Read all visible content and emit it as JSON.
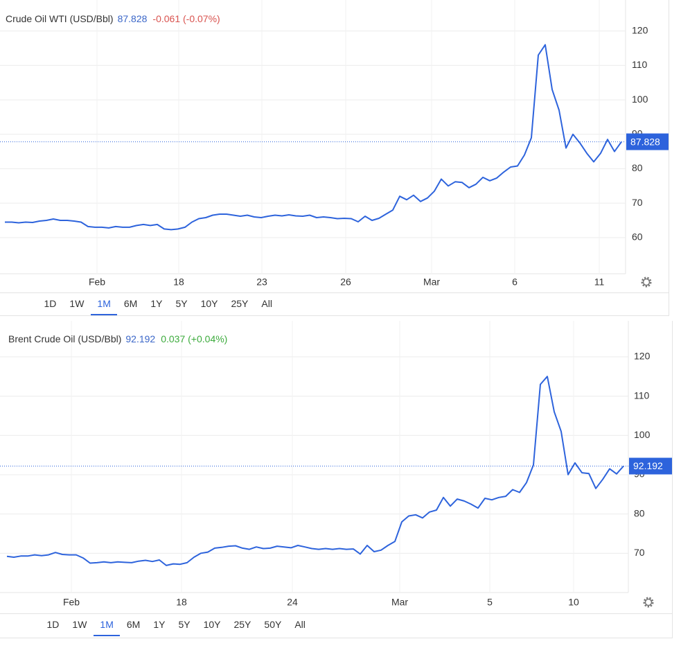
{
  "chart_data": [
    {
      "type": "line",
      "title": "Crude Oil WTI (USD/Bbl)",
      "price": 87.828,
      "price_color": "#3a66c8",
      "change": "-0.061 (-0.07%)",
      "change_color": "#d9534f",
      "color": "#2d63dc",
      "values": [
        64.5,
        64.5,
        64.3,
        64.5,
        64.4,
        64.8,
        65,
        65.4,
        65,
        65,
        64.8,
        64.5,
        63.2,
        63,
        63,
        62.8,
        63.2,
        63,
        63,
        63.5,
        63.8,
        63.5,
        63.8,
        62.5,
        62.3,
        62.5,
        63,
        64.5,
        65.5,
        65.8,
        66.5,
        66.8,
        66.8,
        66.5,
        66.2,
        66.5,
        66,
        65.8,
        66.2,
        66.5,
        66.3,
        66.6,
        66.3,
        66.2,
        66.5,
        65.8,
        66,
        65.8,
        65.5,
        65.6,
        65.5,
        64.6,
        66.2,
        65,
        65.6,
        66.8,
        68,
        72,
        71,
        72.3,
        70.5,
        71.5,
        73.5,
        77,
        75,
        76.2,
        76,
        74.5,
        75.5,
        77.5,
        76.5,
        77.3,
        79,
        80.5,
        80.8,
        84,
        89,
        113,
        116,
        103,
        97,
        86,
        90,
        87.5,
        84.5,
        82,
        84.5,
        88.5,
        85,
        87.8
      ],
      "xlim": [
        0,
        89.6
      ],
      "xticks": [
        {
          "value": 13.3,
          "label": "Feb"
        },
        {
          "value": 25.1,
          "label": "18"
        },
        {
          "value": 37.1,
          "label": "23"
        },
        {
          "value": 49.2,
          "label": "26"
        },
        {
          "value": 61.6,
          "label": "Mar"
        },
        {
          "value": 73.6,
          "label": "6"
        },
        {
          "value": 85.8,
          "label": "11"
        }
      ],
      "ylim": [
        49.5,
        129
      ],
      "yticks": [
        60,
        70,
        80,
        90,
        100,
        110,
        120
      ],
      "grid": true,
      "ranges": [
        "1D",
        "1W",
        "1M",
        "6M",
        "1Y",
        "5Y",
        "10Y",
        "25Y",
        "All"
      ],
      "selected_range": "1M"
    },
    {
      "type": "line",
      "title": "Brent Crude Oil (USD/Bbl)",
      "price": 92.192,
      "price_color": "#3a66c8",
      "change": "0.037 (+0.04%)",
      "change_color": "#3cab3c",
      "color": "#2d63dc",
      "values": [
        69.2,
        69,
        69.3,
        69.3,
        69.6,
        69.4,
        69.6,
        70.2,
        69.7,
        69.6,
        69.6,
        68.8,
        67.5,
        67.6,
        67.8,
        67.6,
        67.8,
        67.7,
        67.6,
        68,
        68.2,
        67.9,
        68.3,
        66.9,
        67.3,
        67.2,
        67.6,
        69,
        70,
        70.3,
        71.3,
        71.5,
        71.8,
        71.9,
        71.3,
        71,
        71.6,
        71.2,
        71.3,
        71.8,
        71.6,
        71.4,
        72,
        71.6,
        71.2,
        71,
        71.2,
        71,
        71.2,
        71,
        71.1,
        69.8,
        72,
        70.4,
        70.8,
        72,
        73,
        78,
        79.5,
        79.8,
        79,
        80.5,
        81,
        84.2,
        82,
        83.8,
        83.3,
        82.5,
        81.5,
        84,
        83.6,
        84.2,
        84.5,
        86.2,
        85.5,
        88,
        92.5,
        113,
        115,
        106,
        101,
        90,
        93,
        90.5,
        90.3,
        86.5,
        88.8,
        91.5,
        90.2,
        92.2
      ],
      "xlim": [
        0,
        89.7
      ],
      "xticks": [
        {
          "value": 9.3,
          "label": "Feb"
        },
        {
          "value": 25.2,
          "label": "18"
        },
        {
          "value": 41.2,
          "label": "24"
        },
        {
          "value": 56.7,
          "label": "Mar"
        },
        {
          "value": 69.7,
          "label": "5"
        },
        {
          "value": 81.8,
          "label": "10"
        }
      ],
      "ylim": [
        60,
        128.8
      ],
      "yticks": [
        70,
        80,
        90,
        100,
        110,
        120
      ],
      "grid": true,
      "ranges": [
        "1D",
        "1W",
        "1M",
        "6M",
        "1Y",
        "5Y",
        "10Y",
        "25Y",
        "50Y",
        "All"
      ],
      "selected_range": "1M"
    }
  ]
}
